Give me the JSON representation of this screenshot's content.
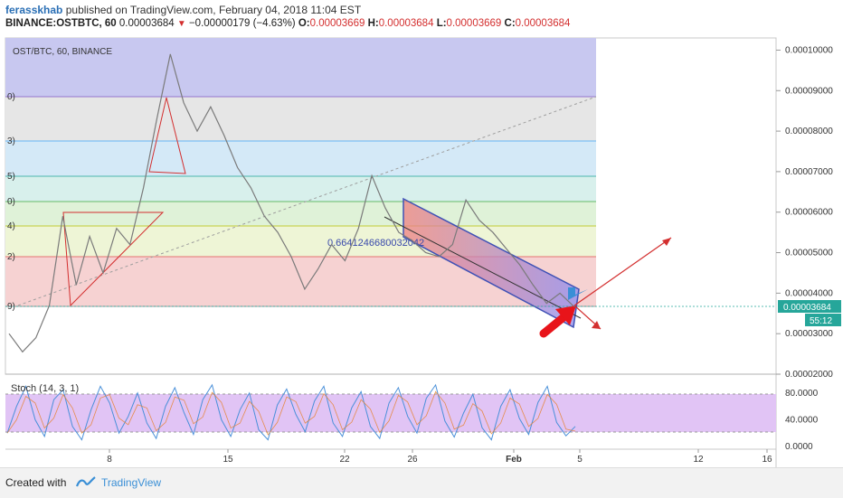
{
  "header": {
    "author": "ferasskhab",
    "published_text": "published on TradingView.com, February 04, 2018 11:04 EST",
    "symbol": "BINANCE:OSTBTC, 60",
    "last": "0.00003684",
    "change": "−0.00000179 (−4.63%)",
    "o_label": "O:",
    "o": "0.00003669",
    "h_label": "H:",
    "h": "0.00003684",
    "l_label": "L:",
    "l": "0.00003669",
    "c_label": "C:",
    "c": "0.00003684"
  },
  "chart_label": "OST/BTC, 60, BINANCE",
  "price_tag": "0.00003684",
  "countdown_tag": "55:12",
  "fib_edge_labels": [
    "0)",
    "3)",
    "5)",
    "0)",
    "4)",
    "2)",
    "9)"
  ],
  "channel_annotation": "0.6641246680032042",
  "stoch_label": "Stoch (14, 3, 1)",
  "footer": {
    "created_with": "Created with",
    "brand": "TradingView"
  },
  "colors": {
    "up_line": "#e53935",
    "channel": "#3f51b5",
    "accent_blue": "#3a8fd6",
    "price_tag": "#26a69a",
    "stoch_band": "#e1c4f5"
  },
  "chart_data": [
    {
      "type": "line",
      "title": "OST/BTC, 60, BINANCE",
      "x_labels": [
        "8",
        "15",
        "22",
        "26",
        "Feb",
        "5",
        "12",
        "16"
      ],
      "y_ticks": [
        "0.00010000",
        "0.00009000",
        "0.00008000",
        "0.00007000",
        "0.00006000",
        "0.00005000",
        "0.00004000",
        "0.00003000",
        "0.00002000"
      ],
      "ylim": [
        2e-05,
        0.000103
      ],
      "series": [
        {
          "values": [
            3e-05,
            2.55e-05,
            2.9e-05,
            3.7e-05,
            5.9e-05,
            4.2e-05,
            5.4e-05,
            4.5e-05,
            5.6e-05,
            5.2e-05,
            6.6e-05,
            8.3e-05,
            9.9e-05,
            8.7e-05,
            8e-05,
            8.6e-05,
            7.9e-05,
            7.1e-05,
            6.6e-05,
            5.9e-05,
            5.5e-05,
            4.9e-05,
            4.1e-05,
            4.6e-05,
            5.2e-05,
            4.8e-05,
            5.6e-05,
            6.9e-05,
            6.1e-05,
            5.5e-05,
            5.3e-05,
            5e-05,
            4.9e-05,
            5.2e-05,
            6.3e-05,
            5.8e-05,
            5.5e-05,
            5.1e-05,
            4.7e-05,
            4.2e-05,
            3.75e-05,
            4e-05,
            3.68e-05
          ]
        }
      ],
      "fib_levels": [
        9.82e-05,
        8.87e-05,
        7.76e-05,
        7.01e-05,
        6.37e-05,
        5.79e-05,
        4.99e-05,
        3.7e-05
      ],
      "grid": true
    },
    {
      "type": "line",
      "title": "Stoch (14, 3, 1)",
      "y_ticks": [
        "80.0000",
        "40.0000",
        "0.0000"
      ],
      "ylim": [
        0,
        100
      ],
      "band": [
        20,
        80
      ],
      "series": [
        {
          "values": [
            20,
            60,
            90,
            40,
            15,
            70,
            85,
            30,
            10,
            55,
            90,
            65,
            20,
            45,
            80,
            35,
            12,
            60,
            88,
            50,
            18,
            70,
            92,
            40,
            15,
            55,
            80,
            25,
            10,
            62,
            86,
            48,
            22,
            68,
            90,
            35,
            15,
            58,
            82,
            30,
            12,
            65,
            88,
            45,
            20,
            72,
            92,
            38,
            14,
            50,
            78,
            28,
            10,
            60,
            85,
            42,
            18,
            66,
            90,
            36,
            16,
            30
          ]
        }
      ]
    }
  ]
}
